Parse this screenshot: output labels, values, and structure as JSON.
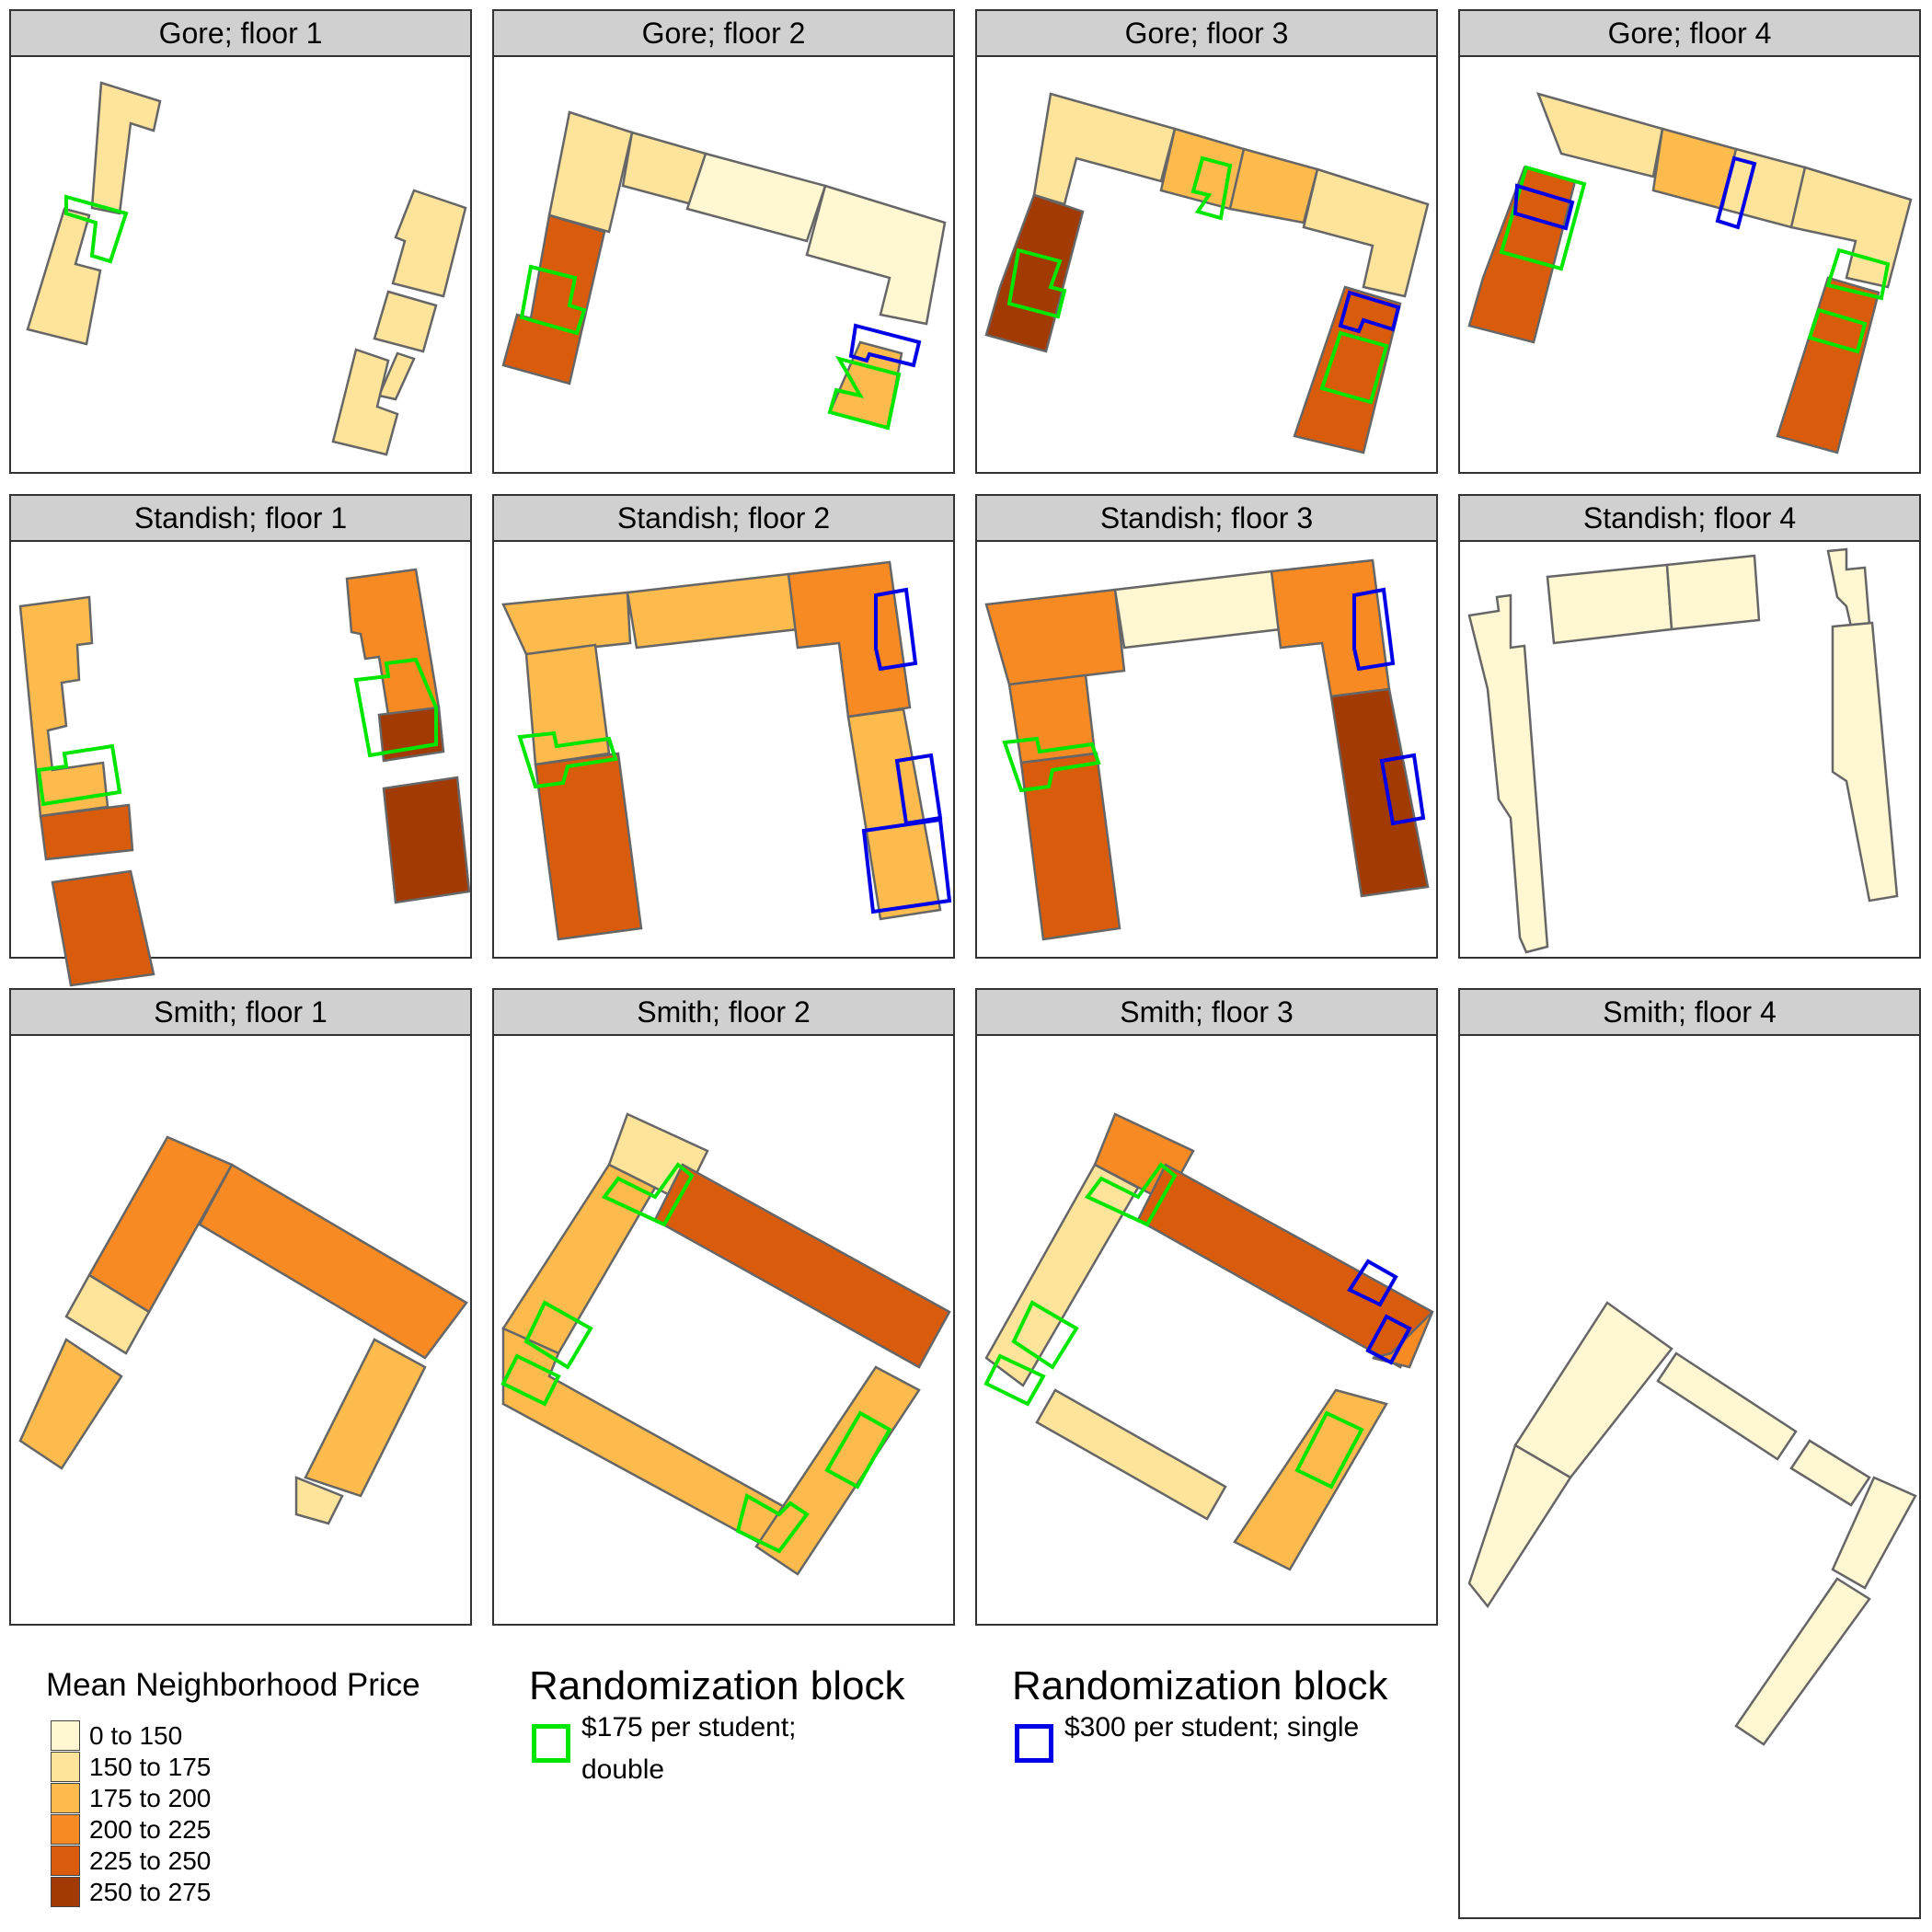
{
  "panels": [
    {
      "title": "Gore; floor 1"
    },
    {
      "title": "Gore; floor 2"
    },
    {
      "title": "Gore; floor 3"
    },
    {
      "title": "Gore; floor 4"
    },
    {
      "title": "Standish; floor 1"
    },
    {
      "title": "Standish; floor 2"
    },
    {
      "title": "Standish; floor 3"
    },
    {
      "title": "Standish; floor 4"
    },
    {
      "title": "Smith; floor 1"
    },
    {
      "title": "Smith; floor 2"
    },
    {
      "title": "Smith; floor 3"
    },
    {
      "title": "Smith; floor 4"
    }
  ],
  "legend_price": {
    "title": "Mean Neighborhood Price",
    "classes": [
      {
        "label": "0 to 150",
        "color": "#fff7d1"
      },
      {
        "label": "150 to 175",
        "color": "#fee39b"
      },
      {
        "label": "175 to 200",
        "color": "#fdbb4d"
      },
      {
        "label": "200 to 225",
        "color": "#f88a24"
      },
      {
        "label": "225 to 250",
        "color": "#d85c0c"
      },
      {
        "label": "250 to 275",
        "color": "#a23a04"
      }
    ]
  },
  "legend_block_double": {
    "title": "Randomization block",
    "label": "$175 per student; double",
    "color": "#00e600"
  },
  "legend_block_single": {
    "title": "Randomization block",
    "label": "$300 per student; single",
    "color": "#0000e6"
  }
}
